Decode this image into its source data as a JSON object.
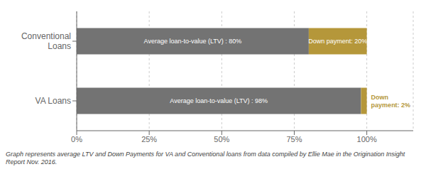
{
  "chart_data": {
    "type": "bar",
    "orientation": "horizontal",
    "stacked": true,
    "categories": [
      "Conventional\nLoans",
      "VA Loans"
    ],
    "series": [
      {
        "color": "#737373",
        "values": [
          80,
          98
        ],
        "value_labels": [
          "Average loan-to-value (LTV) : 80%",
          "Average loan-to-value (LTV) : 98%"
        ]
      },
      {
        "color": "#b5973a",
        "values": [
          20,
          2
        ],
        "value_labels": [
          "Down payment: 20%",
          "Down\npayment: 2%"
        ]
      }
    ],
    "xlim": [
      0,
      116
    ],
    "xticks": [
      {
        "value": 0,
        "label": "0%"
      },
      {
        "value": 25,
        "label": "25%"
      },
      {
        "value": 50,
        "label": "50%"
      },
      {
        "value": 75,
        "label": "75%"
      },
      {
        "value": 100,
        "label": "100%"
      }
    ],
    "grid": true,
    "annotations": [
      "Graph represents average LTV and Down Payments for VA and Conventional loans from data compiled by Ellie Mae in the Origination Insight Report Nov. 2016."
    ]
  }
}
